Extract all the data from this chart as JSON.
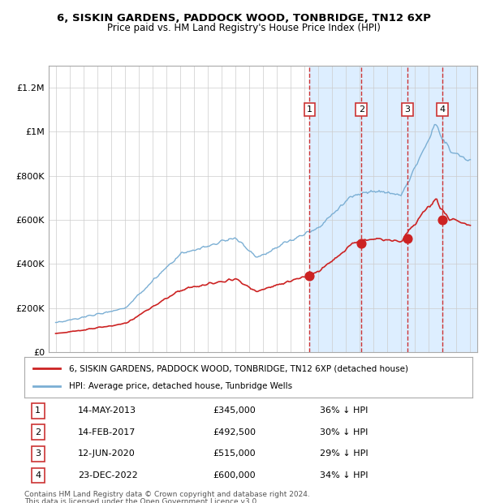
{
  "title1": "6, SISKIN GARDENS, PADDOCK WOOD, TONBRIDGE, TN12 6XP",
  "title2": "Price paid vs. HM Land Registry's House Price Index (HPI)",
  "ylabel": "",
  "background_color": "#ffffff",
  "plot_bg_color": "#ffffff",
  "shaded_bg_color": "#ddeeff",
  "grid_color": "#cccccc",
  "hpi_color": "#7bafd4",
  "price_color": "#cc2222",
  "sale_marker_color": "#cc2222",
  "dashed_line_color": "#cc3333",
  "transactions": [
    {
      "label": "1",
      "date": 2013.37,
      "price": 345000
    },
    {
      "label": "2",
      "date": 2017.12,
      "price": 492500
    },
    {
      "label": "3",
      "date": 2020.45,
      "price": 515000
    },
    {
      "label": "4",
      "date": 2022.98,
      "price": 600000
    }
  ],
  "transaction_display": [
    {
      "num": "1",
      "date": "14-MAY-2013",
      "price": "£345,000",
      "discount": "36% ↓ HPI"
    },
    {
      "num": "2",
      "date": "14-FEB-2017",
      "price": "£492,500",
      "discount": "30% ↓ HPI"
    },
    {
      "num": "3",
      "date": "12-JUN-2020",
      "price": "£515,000",
      "discount": "29% ↓ HPI"
    },
    {
      "num": "4",
      "date": "23-DEC-2022",
      "price": "£600,000",
      "discount": "34% ↓ HPI"
    }
  ],
  "legend_line1": "6, SISKIN GARDENS, PADDOCK WOOD, TONBRIDGE, TN12 6XP (detached house)",
  "legend_line2": "HPI: Average price, detached house, Tunbridge Wells",
  "footer1": "Contains HM Land Registry data © Crown copyright and database right 2024.",
  "footer2": "This data is licensed under the Open Government Licence v3.0.",
  "ylim": [
    0,
    1300000
  ],
  "xlim_start": 1994.5,
  "xlim_end": 2025.5,
  "shade_start": 2013.37,
  "yticks": [
    0,
    200000,
    400000,
    600000,
    800000,
    1000000,
    1200000
  ],
  "ytick_labels": [
    "£0",
    "£200K",
    "£400K",
    "£600K",
    "£800K",
    "£1M",
    "£1.2M"
  ]
}
